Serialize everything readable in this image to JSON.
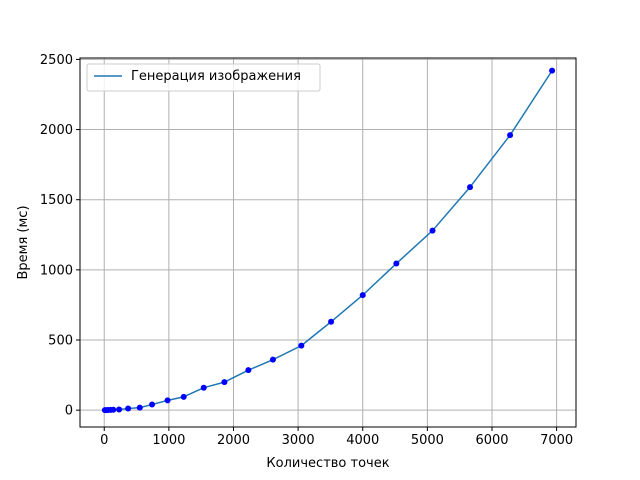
{
  "chart_data": {
    "type": "line",
    "title": "",
    "xlabel": "Количество точек",
    "ylabel": "Время (мс)",
    "xlim": [
      -375,
      7300
    ],
    "ylim": [
      -120,
      2510
    ],
    "xticks": [
      0,
      1000,
      2000,
      3000,
      4000,
      5000,
      6000,
      7000
    ],
    "yticks": [
      0,
      500,
      1000,
      1500,
      2000,
      2500
    ],
    "grid": true,
    "legend_position": "top-left",
    "series": [
      {
        "name": "Генерация изображения",
        "type": "line",
        "color": "#1f77b4",
        "x": [
          10,
          30,
          60,
          100,
          140,
          230,
          370,
          550,
          740,
          980,
          1230,
          1540,
          1860,
          2230,
          2610,
          3050,
          3510,
          4000,
          4520,
          5080,
          5660,
          6280,
          6930
        ],
        "y": [
          0,
          0,
          1,
          2,
          3,
          5,
          12,
          18,
          40,
          70,
          95,
          160,
          200,
          285,
          360,
          460,
          630,
          820,
          1045,
          1280,
          1590,
          1960,
          2420
        ]
      },
      {
        "name": "",
        "type": "scatter",
        "color": "#0000ff",
        "x": [
          10,
          30,
          60,
          100,
          140,
          230,
          370,
          550,
          740,
          980,
          1230,
          1540,
          1860,
          2230,
          2610,
          3050,
          3510,
          4000,
          4520,
          5080,
          5660,
          6280,
          6930
        ],
        "y": [
          0,
          0,
          1,
          2,
          3,
          5,
          12,
          18,
          40,
          70,
          95,
          160,
          200,
          285,
          360,
          460,
          630,
          820,
          1045,
          1280,
          1590,
          1960,
          2420
        ]
      }
    ]
  }
}
